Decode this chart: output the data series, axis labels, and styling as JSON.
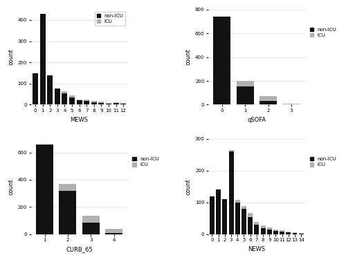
{
  "mews": {
    "scores": [
      0,
      1,
      2,
      3,
      4,
      5,
      6,
      7,
      8,
      9,
      10,
      11,
      12
    ],
    "non_icu": [
      150,
      430,
      140,
      75,
      55,
      35,
      20,
      18,
      12,
      8,
      5,
      8,
      5
    ],
    "icu": [
      0,
      0,
      0,
      0,
      10,
      10,
      5,
      5,
      5,
      5,
      3,
      3,
      3
    ],
    "xlabel": "MEWS",
    "ylabel": "count",
    "ylim": [
      0,
      450
    ],
    "yticks": [
      0,
      100,
      200,
      300,
      400
    ],
    "xtick_labels": [
      "0",
      "1",
      "2",
      "3",
      "4",
      "5",
      "6",
      "7",
      "8",
      "9",
      "10",
      "11",
      "12"
    ]
  },
  "qsofa": {
    "scores": [
      0,
      1,
      2,
      3
    ],
    "non_icu": [
      740,
      155,
      30,
      3
    ],
    "icu": [
      0,
      45,
      40,
      5
    ],
    "xlabel": "qSOFA",
    "ylabel": "count",
    "ylim": [
      0,
      800
    ],
    "yticks": [
      0,
      200,
      400,
      600,
      800
    ],
    "xtick_labels": [
      "0",
      "1",
      "2",
      "3"
    ]
  },
  "curb65": {
    "scores": [
      1,
      2,
      3,
      4
    ],
    "non_icu": [
      660,
      320,
      85,
      10
    ],
    "icu": [
      0,
      50,
      50,
      30
    ],
    "xlabel": "CURB_65",
    "ylabel": "count",
    "ylim": [
      0,
      700
    ],
    "yticks": [
      0,
      200,
      400,
      600
    ],
    "xtick_labels": [
      "1",
      "2",
      "3",
      "4"
    ]
  },
  "news": {
    "scores": [
      0,
      1,
      2,
      3,
      4,
      5,
      6,
      7,
      8,
      9,
      10,
      11,
      12,
      13,
      14
    ],
    "non_icu": [
      120,
      140,
      110,
      260,
      100,
      80,
      55,
      30,
      20,
      15,
      10,
      8,
      5,
      3,
      2
    ],
    "icu": [
      0,
      0,
      0,
      5,
      8,
      8,
      12,
      8,
      8,
      6,
      5,
      4,
      3,
      2,
      1
    ],
    "xlabel": "NEWS",
    "ylabel": "count",
    "ylim": [
      0,
      300
    ],
    "yticks": [
      0,
      100,
      200,
      300
    ],
    "xtick_labels": [
      "0",
      "1",
      "2",
      "3",
      "4",
      "5",
      "6",
      "7",
      "8",
      "9",
      "10",
      "11",
      "12",
      "13",
      "14"
    ]
  },
  "non_icu_color": "#111111",
  "icu_color": "#b0b0b0",
  "panel_bg": "#ffffff",
  "fig_bg": "#ffffff",
  "grid_color": "#e8e8e8",
  "bar_width": 0.75,
  "legend_non_icu": "non-ICU",
  "legend_icu": "ICU",
  "label_fontsize": 6,
  "tick_fontsize": 5,
  "legend_fontsize": 5
}
